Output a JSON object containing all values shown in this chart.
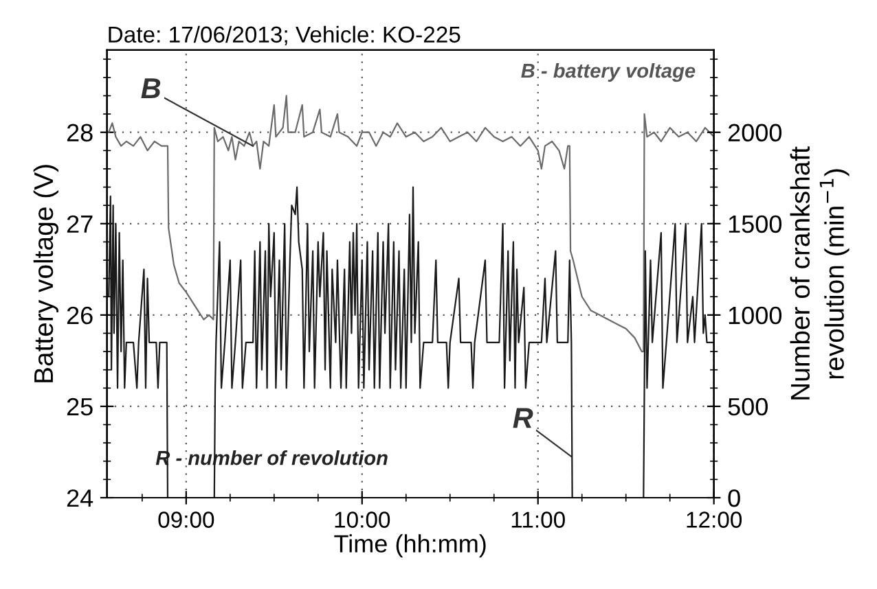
{
  "chart_data": {
    "type": "line",
    "title": "Date: 17/06/2013; Vehicle: KO-225",
    "xlabel": "Time (hh:mm)",
    "ylabel": "Battery voltage (V)",
    "y2label": "Number of crankshaft\nrevolution (min$^{−1}$)",
    "xlim": [
      8.55,
      12.0
    ],
    "xticks": [
      {
        "value": 9,
        "label": "09:00"
      },
      {
        "value": 10,
        "label": "10:00"
      },
      {
        "value": 11,
        "label": "11:00"
      },
      {
        "value": 12,
        "label": "12:00"
      }
    ],
    "ylim": [
      24,
      28.9
    ],
    "yticks": [
      24,
      25,
      26,
      27,
      28
    ],
    "y2lim": [
      0,
      2450
    ],
    "y2ticks": [
      0,
      500,
      1000,
      1500,
      2000
    ],
    "grid": true,
    "annotations": [
      {
        "text": "B",
        "x": 9.38,
        "y": 27.85
      },
      {
        "text": "R",
        "x": 11.19,
        "y": 24.45
      },
      "B - battery voltage",
      "R - number of revolution"
    ],
    "series": [
      {
        "color": "#6a6a6a",
        "x": [
          8.56,
          8.58,
          8.6,
          8.63,
          8.66,
          8.7,
          8.74,
          8.78,
          8.82,
          8.86,
          8.895,
          8.9,
          8.93,
          8.96,
          9.0,
          9.05,
          9.1,
          9.13,
          9.155,
          9.16,
          9.18,
          9.21,
          9.24,
          9.26,
          9.28,
          9.3,
          9.33,
          9.36,
          9.38,
          9.4,
          9.42,
          9.44,
          9.47,
          9.5,
          9.51,
          9.55,
          9.57,
          9.58,
          9.62,
          9.66,
          9.67,
          9.72,
          9.76,
          9.77,
          9.82,
          9.86,
          9.87,
          9.92,
          9.97,
          10.0,
          10.04,
          10.08,
          10.12,
          10.16,
          10.2,
          10.25,
          10.3,
          10.35,
          10.4,
          10.45,
          10.5,
          10.55,
          10.6,
          10.65,
          10.7,
          10.75,
          10.8,
          10.85,
          10.9,
          10.95,
          11.0,
          11.02,
          11.04,
          11.08,
          11.12,
          11.15,
          11.17,
          11.18,
          11.185,
          11.2,
          11.25,
          11.3,
          11.35,
          11.4,
          11.45,
          11.5,
          11.55,
          11.59,
          11.6,
          11.605,
          11.62,
          11.66,
          11.7,
          11.75,
          11.8,
          11.85,
          11.9,
          11.95,
          12.0
        ],
        "values": [
          28.0,
          28.1,
          27.95,
          27.85,
          27.9,
          27.85,
          27.95,
          27.8,
          27.9,
          27.85,
          27.85,
          26.95,
          26.55,
          26.35,
          26.25,
          26.1,
          25.95,
          26.0,
          25.95,
          28.05,
          27.9,
          27.95,
          27.8,
          27.95,
          27.7,
          27.9,
          27.85,
          28.0,
          27.85,
          27.9,
          27.6,
          27.9,
          27.85,
          28.3,
          27.95,
          28.05,
          28.4,
          28.0,
          28.0,
          28.3,
          27.95,
          28.0,
          28.25,
          28.0,
          27.95,
          28.2,
          28.0,
          27.95,
          27.85,
          28.0,
          28.0,
          27.85,
          28.0,
          27.95,
          28.1,
          27.95,
          28.0,
          27.9,
          27.95,
          28.05,
          27.9,
          27.95,
          28.0,
          27.9,
          28.05,
          27.95,
          27.9,
          27.95,
          27.85,
          27.95,
          27.8,
          27.6,
          27.85,
          27.9,
          27.8,
          27.6,
          27.85,
          27.85,
          26.7,
          26.6,
          26.2,
          26.05,
          26.0,
          25.95,
          25.9,
          25.85,
          25.75,
          25.6,
          25.6,
          28.2,
          27.95,
          28.0,
          27.9,
          28.05,
          27.95,
          28.0,
          27.9,
          28.05,
          27.95
        ]
      },
      {
        "color": "#1a1a1a",
        "axis": "y2",
        "x": [
          8.56,
          8.57,
          8.575,
          8.585,
          8.59,
          8.6,
          8.61,
          8.62,
          8.63,
          8.64,
          8.65,
          8.66,
          8.7,
          8.72,
          8.73,
          8.76,
          8.77,
          8.78,
          8.79,
          8.83,
          8.84,
          8.85,
          8.89,
          8.895,
          9.16,
          9.165,
          9.17,
          9.19,
          9.2,
          9.22,
          9.25,
          9.26,
          9.28,
          9.31,
          9.32,
          9.34,
          9.38,
          9.39,
          9.4,
          9.42,
          9.43,
          9.45,
          9.46,
          9.47,
          9.48,
          9.5,
          9.51,
          9.53,
          9.54,
          9.56,
          9.57,
          9.59,
          9.6,
          9.62,
          9.63,
          9.64,
          9.66,
          9.67,
          9.69,
          9.7,
          9.72,
          9.73,
          9.75,
          9.76,
          9.78,
          9.79,
          9.8,
          9.82,
          9.83,
          9.85,
          9.86,
          9.88,
          9.9,
          9.91,
          9.93,
          9.94,
          9.95,
          9.96,
          9.97,
          9.98,
          10.0,
          10.01,
          10.03,
          10.04,
          10.06,
          10.07,
          10.09,
          10.1,
          10.12,
          10.13,
          10.15,
          10.16,
          10.18,
          10.19,
          10.21,
          10.22,
          10.24,
          10.25,
          10.27,
          10.28,
          10.29,
          10.3,
          10.32,
          10.33,
          10.35,
          10.4,
          10.42,
          10.43,
          10.48,
          10.49,
          10.5,
          10.55,
          10.56,
          10.62,
          10.63,
          10.64,
          10.7,
          10.71,
          10.78,
          10.8,
          10.81,
          10.83,
          10.84,
          10.86,
          10.87,
          10.88,
          10.89,
          10.92,
          10.93,
          10.95,
          11.02,
          11.04,
          11.05,
          11.1,
          11.11,
          11.17,
          11.18,
          11.19,
          11.195,
          11.6,
          11.605,
          11.61,
          11.62,
          11.64,
          11.65,
          11.7,
          11.71,
          11.73,
          11.78,
          11.79,
          11.84,
          11.85,
          11.88,
          11.89,
          11.93,
          11.94,
          11.95,
          11.96,
          12.0
        ],
        "values": [
          1100,
          1650,
          700,
          1600,
          900,
          1500,
          600,
          1450,
          800,
          1300,
          600,
          850,
          850,
          600,
          850,
          1250,
          600,
          1200,
          850,
          850,
          600,
          850,
          850,
          0,
          0,
          600,
          850,
          1400,
          600,
          850,
          1300,
          600,
          850,
          1300,
          600,
          850,
          850,
          1350,
          600,
          1400,
          700,
          1350,
          600,
          1500,
          1100,
          1450,
          600,
          1300,
          700,
          1500,
          600,
          1300,
          1600,
          1550,
          1700,
          1400,
          1250,
          600,
          1500,
          800,
          1350,
          600,
          1400,
          1100,
          1450,
          700,
          1350,
          600,
          1250,
          850,
          1300,
          600,
          1250,
          600,
          1400,
          900,
          1450,
          1000,
          1500,
          600,
          1300,
          600,
          1400,
          700,
          1350,
          600,
          1450,
          600,
          1400,
          900,
          1500,
          600,
          1400,
          700,
          1350,
          600,
          1250,
          600,
          1550,
          850,
          1700,
          900,
          1400,
          600,
          850,
          850,
          1300,
          850,
          850,
          600,
          850,
          1200,
          850,
          850,
          600,
          850,
          1300,
          850,
          850,
          1500,
          600,
          1350,
          750,
          1400,
          600,
          1250,
          850,
          1150,
          600,
          850,
          850,
          1200,
          850,
          1350,
          850,
          850,
          1300,
          850,
          0,
          0,
          600,
          1350,
          600,
          1300,
          850,
          1450,
          600,
          850,
          1500,
          850,
          1500,
          850,
          1100,
          850,
          1500,
          900,
          1000,
          850,
          850
        ]
      }
    ]
  }
}
